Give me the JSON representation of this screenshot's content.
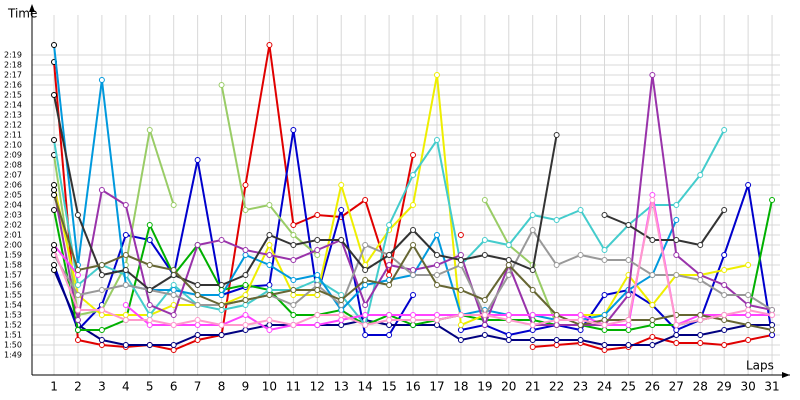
{
  "chart_data": {
    "type": "line",
    "y_label": "Time",
    "x_label": "Laps",
    "x": [
      1,
      2,
      3,
      4,
      5,
      6,
      7,
      8,
      9,
      10,
      11,
      12,
      13,
      14,
      15,
      16,
      17,
      18,
      19,
      20,
      21,
      22,
      23,
      24,
      25,
      26,
      27,
      28,
      29,
      30,
      31
    ],
    "xlim": [
      0.08,
      31.75
    ],
    "xticks": [
      1,
      2,
      3,
      4,
      5,
      6,
      7,
      8,
      9,
      10,
      11,
      12,
      13,
      14,
      15,
      16,
      17,
      18,
      19,
      20,
      21,
      22,
      23,
      24,
      25,
      26,
      27,
      28,
      29,
      30,
      31
    ],
    "ylim": [
      107,
      143.5
    ],
    "yticks": [
      {
        "value": 109,
        "label": "1:49"
      },
      {
        "value": 110,
        "label": "1:50"
      },
      {
        "value": 111,
        "label": "1:51"
      },
      {
        "value": 112,
        "label": "1:52"
      },
      {
        "value": 113,
        "label": "1:53"
      },
      {
        "value": 114,
        "label": "1:54"
      },
      {
        "value": 115,
        "label": "1:55"
      },
      {
        "value": 116,
        "label": "1:56"
      },
      {
        "value": 117,
        "label": "1:57"
      },
      {
        "value": 118,
        "label": "1:58"
      },
      {
        "value": 119,
        "label": "1:59"
      },
      {
        "value": 120,
        "label": "2:00"
      },
      {
        "value": 121,
        "label": "2:01"
      },
      {
        "value": 122,
        "label": "2:02"
      },
      {
        "value": 123,
        "label": "2:03"
      },
      {
        "value": 124,
        "label": "2:04"
      },
      {
        "value": 125,
        "label": "2:05"
      },
      {
        "value": 126,
        "label": "2:06"
      },
      {
        "value": 127,
        "label": "2:07"
      },
      {
        "value": 128,
        "label": "2:08"
      },
      {
        "value": 129,
        "label": "2:09"
      },
      {
        "value": 130,
        "label": "2:10"
      },
      {
        "value": 131,
        "label": "2:11"
      },
      {
        "value": 132,
        "label": "2:12"
      },
      {
        "value": 133,
        "label": "2:13"
      },
      {
        "value": 134,
        "label": "2:14"
      },
      {
        "value": 135,
        "label": "2:15"
      },
      {
        "value": 136,
        "label": "2:16"
      },
      {
        "value": 137,
        "label": "2:17"
      },
      {
        "value": 138,
        "label": "2:18"
      },
      {
        "value": 139,
        "label": "2:19"
      }
    ],
    "grid": true,
    "series": [
      {
        "color": "#e00000",
        "values": [
          138.3,
          110.5,
          110,
          109.8,
          110,
          109.5,
          110.5,
          111,
          126,
          140,
          122,
          123,
          122.8,
          124.5,
          117,
          129,
          null,
          121,
          null,
          null,
          109.8,
          110,
          110.2,
          109.5,
          109.8,
          110.8,
          110.2,
          110.2,
          110,
          110.5,
          111
        ]
      },
      {
        "color": "#0000cc",
        "values": [
          118,
          111.5,
          114,
          121,
          120.5,
          117,
          128.5,
          115,
          115.8,
          116,
          131.5,
          115,
          123.5,
          111,
          111,
          115,
          null,
          111.5,
          112,
          111,
          111.5,
          112,
          111.5,
          115,
          115.5,
          114,
          111.5,
          112.5,
          119,
          126,
          111
        ]
      },
      {
        "color": "#000080",
        "values": [
          117.5,
          112,
          110.5,
          110,
          110,
          110,
          111,
          111,
          111.5,
          112,
          112,
          112,
          112,
          112.5,
          112,
          112,
          112,
          110.5,
          111,
          110.5,
          110.5,
          110.5,
          110.5,
          110,
          110,
          110,
          111,
          111,
          111.5,
          112,
          112
        ]
      },
      {
        "color": "#00b000",
        "values": [
          123.5,
          111.5,
          111.5,
          112.5,
          122,
          117,
          120,
          115.5,
          116,
          115.5,
          113,
          113,
          113.5,
          112,
          113,
          112,
          112.5,
          113,
          112.5,
          112.5,
          112.5,
          112,
          112,
          111.5,
          111.5,
          112,
          112,
          112.5,
          113,
          113,
          124.5
        ]
      },
      {
        "color": "#99cc66",
        "values": [
          129,
          113,
          113.5,
          118,
          131.5,
          124,
          null,
          136,
          123.5,
          124,
          121,
          119,
          null,
          null,
          null,
          null,
          null,
          null,
          124.5,
          120,
          118,
          112,
          112,
          null,
          null,
          null,
          null,
          null,
          null,
          null,
          null
        ]
      },
      {
        "color": "#eeee00",
        "values": [
          126,
          115,
          113,
          113,
          113,
          114,
          114,
          114,
          115,
          120,
          115,
          115,
          126,
          118,
          121.5,
          124,
          137,
          112,
          113,
          113,
          113,
          113,
          113,
          113,
          117,
          114,
          117,
          117,
          117.5,
          118,
          null
        ]
      },
      {
        "color": "#44cccc",
        "values": [
          130.5,
          116,
          118,
          117,
          113,
          116,
          114,
          113.5,
          114,
          115.5,
          115.5,
          116.5,
          115,
          112,
          122,
          127,
          130.5,
          118,
          120.5,
          120,
          123,
          122.5,
          123.5,
          119.5,
          122,
          124,
          124,
          127,
          131.5,
          null,
          null
        ]
      },
      {
        "color": "#0099dd",
        "values": [
          140,
          118,
          136.5,
          116,
          115.5,
          115.5,
          115,
          115,
          119,
          118,
          116.5,
          117,
          113.5,
          116,
          116.5,
          117,
          121,
          113,
          113.5,
          113,
          113,
          112.5,
          112.5,
          113,
          115.5,
          117,
          122.5,
          null,
          null,
          null,
          null
        ]
      },
      {
        "color": "#9933aa",
        "values": [
          125.5,
          112.5,
          125.5,
          124,
          114,
          113,
          120,
          120.5,
          119.5,
          119,
          118.5,
          119.5,
          120.5,
          114,
          118,
          117.5,
          118,
          119,
          112,
          118,
          112,
          112,
          112,
          112,
          115,
          137,
          119,
          117,
          116,
          114,
          113.5
        ]
      },
      {
        "color": "#ff44ff",
        "values": [
          120,
          117,
          null,
          114,
          112,
          112,
          112,
          112,
          113,
          111.5,
          112,
          112,
          112.5,
          113,
          113,
          113,
          113,
          113,
          113,
          113,
          113,
          113,
          113,
          112,
          112,
          125,
          112,
          113,
          113,
          113,
          113
        ]
      },
      {
        "color": "#999999",
        "values": [
          119,
          115,
          115.5,
          116,
          115.5,
          115,
          114,
          114,
          114.5,
          115,
          114,
          116,
          114,
          120,
          119,
          117,
          117,
          118,
          113,
          117,
          121.5,
          118,
          119,
          118.5,
          118.5,
          117,
          117,
          116.5,
          115,
          115,
          113.5
        ]
      },
      {
        "color": "#333333",
        "values": [
          135,
          123,
          117,
          117.5,
          115.5,
          117,
          116,
          116,
          117,
          121,
          120,
          120.5,
          120.5,
          117.5,
          119,
          121.5,
          119,
          118.5,
          119,
          118.5,
          117.5,
          131,
          null,
          123,
          122,
          120.5,
          120.5,
          120,
          123.5,
          null,
          null
        ]
      },
      {
        "color": "#666633",
        "values": [
          125,
          117.5,
          118,
          119,
          118,
          117.5,
          115,
          114,
          114.5,
          115,
          115.5,
          115.5,
          114.5,
          116.5,
          116,
          120,
          116,
          115.5,
          114.5,
          118,
          115.5,
          113,
          112,
          112.5,
          112.5,
          112.5,
          113,
          113,
          112.5,
          112,
          111.5
        ]
      },
      {
        "color": "#ff99cc",
        "values": [
          119.5,
          113.5,
          113.5,
          112.5,
          112.5,
          112,
          112.5,
          112,
          112,
          112.5,
          112,
          113,
          113,
          112,
          112.5,
          112.5,
          112.5,
          113,
          113,
          112.5,
          112,
          112.5,
          112.5,
          112,
          112.5,
          124.5,
          112,
          112.5,
          113,
          113.5,
          113
        ]
      }
    ]
  }
}
